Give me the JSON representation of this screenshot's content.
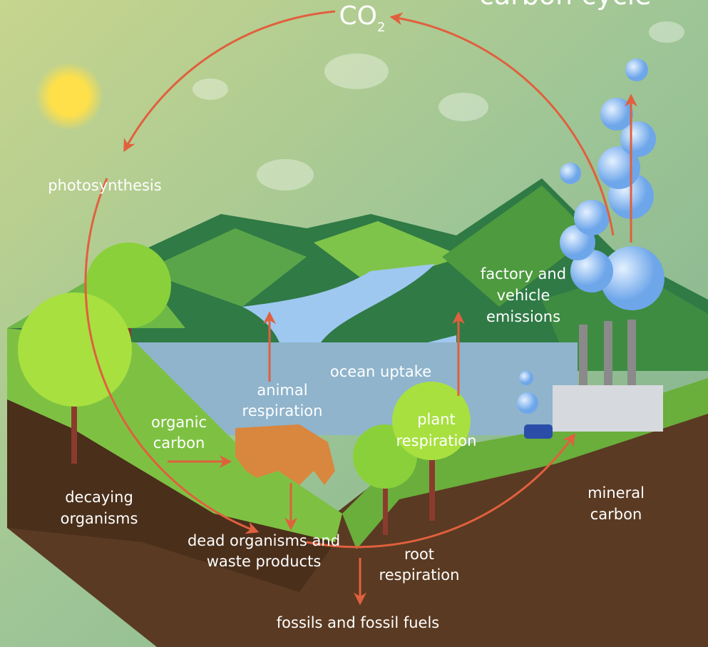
{
  "title": "carbon cycle",
  "co2": {
    "main": "CO",
    "sub": "2"
  },
  "labels": {
    "photosynthesis": "photosynthesis",
    "factory": [
      "factory and",
      "vehicle",
      "emissions"
    ],
    "ocean_uptake": "ocean uptake",
    "animal_respiration": [
      "animal",
      "respiration"
    ],
    "organic_carbon": [
      "organic",
      "carbon"
    ],
    "plant_respiration": [
      "plant",
      "respiration"
    ],
    "decaying_organisms": [
      "decaying",
      "organisms"
    ],
    "dead_organisms": [
      "dead organisms and",
      "waste products"
    ],
    "root_respiration": [
      "root",
      "respiration"
    ],
    "mineral_carbon": [
      "mineral",
      "carbon"
    ],
    "fossils": "fossils and fossil fuels"
  }
}
